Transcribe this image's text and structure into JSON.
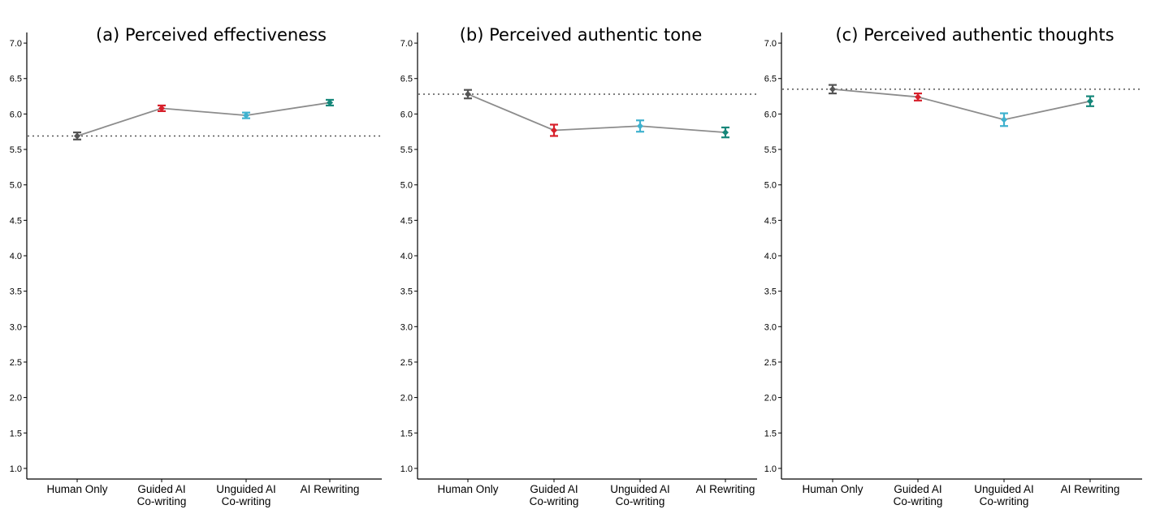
{
  "chart_data": [
    {
      "type": "line",
      "title": "(a) Perceived effectiveness",
      "categories": [
        [
          "Human Only"
        ],
        [
          "Guided AI",
          "Co-writing"
        ],
        [
          "Unguided AI",
          "Co-writing"
        ],
        [
          "AI Rewriting"
        ]
      ],
      "values": [
        5.69,
        6.08,
        5.98,
        6.16
      ],
      "error": [
        0.05,
        0.04,
        0.04,
        0.04
      ],
      "reference_line": 5.69,
      "ylim": [
        0.85,
        7.15
      ],
      "yticks": [
        "1.0",
        "1.5",
        "2.0",
        "2.5",
        "3.0",
        "3.5",
        "4.0",
        "4.5",
        "5.0",
        "5.5",
        "6.0",
        "6.5",
        "7.0"
      ],
      "colors": [
        "#555555",
        "#d7202b",
        "#3fb1ce",
        "#16877a"
      ],
      "grid": false
    },
    {
      "type": "line",
      "title": "(b) Perceived authentic tone",
      "categories": [
        [
          "Human Only"
        ],
        [
          "Guided AI",
          "Co-writing"
        ],
        [
          "Unguided AI",
          "Co-writing"
        ],
        [
          "AI Rewriting"
        ]
      ],
      "values": [
        6.28,
        5.77,
        5.83,
        5.74
      ],
      "error": [
        0.06,
        0.08,
        0.08,
        0.07
      ],
      "reference_line": 6.28,
      "ylim": [
        0.85,
        7.15
      ],
      "yticks": [
        "1.0",
        "1.5",
        "2.0",
        "2.5",
        "3.0",
        "3.5",
        "4.0",
        "4.5",
        "5.0",
        "5.5",
        "6.0",
        "6.5",
        "7.0"
      ],
      "colors": [
        "#555555",
        "#d7202b",
        "#3fb1ce",
        "#16877a"
      ],
      "grid": false
    },
    {
      "type": "line",
      "title": "(c) Perceived authentic thoughts",
      "categories": [
        [
          "Human Only"
        ],
        [
          "Guided AI",
          "Co-writing"
        ],
        [
          "Unguided AI",
          "Co-writing"
        ],
        [
          "AI Rewriting"
        ]
      ],
      "values": [
        6.35,
        6.24,
        5.92,
        6.18
      ],
      "error": [
        0.06,
        0.05,
        0.09,
        0.07
      ],
      "reference_line": 6.35,
      "ylim": [
        0.85,
        7.15
      ],
      "yticks": [
        "1.0",
        "1.5",
        "2.0",
        "2.5",
        "3.0",
        "3.5",
        "4.0",
        "4.5",
        "5.0",
        "5.5",
        "6.0",
        "6.5",
        "7.0"
      ],
      "colors": [
        "#555555",
        "#d7202b",
        "#3fb1ce",
        "#16877a"
      ],
      "grid": false
    }
  ]
}
